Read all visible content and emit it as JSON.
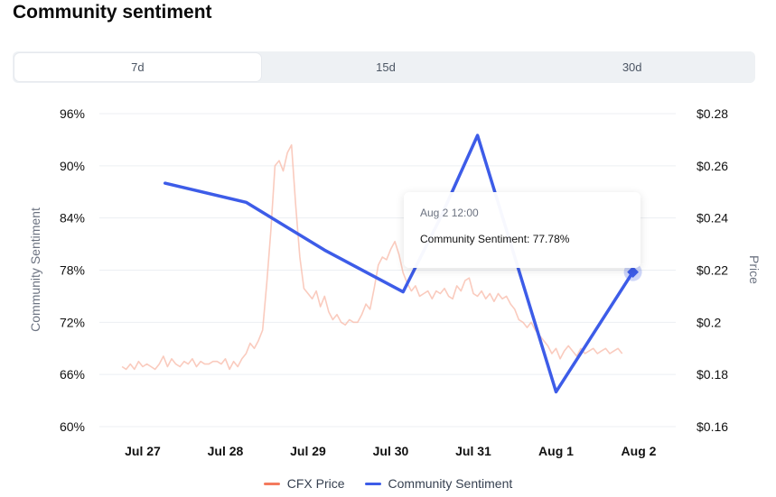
{
  "header": {
    "title": "Community sentiment"
  },
  "tabs": [
    {
      "label": "7d",
      "active": true
    },
    {
      "label": "15d",
      "active": false
    },
    {
      "label": "30d",
      "active": false
    }
  ],
  "tooltip": {
    "date": "Aug 2 12:00",
    "text": "Community Sentiment: 77.78%"
  },
  "legend": {
    "price_label": "CFX Price",
    "sentiment_label": "Community Sentiment"
  },
  "colors": {
    "sentiment": "#3d5ce8",
    "price": "#f8b9a8",
    "price_swatch": "#f47a5e",
    "grid": "#eceff3",
    "active_tick": "#3d5ce8"
  },
  "chart_data": {
    "type": "line",
    "title": "Community sentiment",
    "categories": [
      "Jul 27",
      "Jul 28",
      "Jul 29",
      "Jul 30",
      "Jul 31",
      "Aug 1",
      "Aug 2"
    ],
    "left_axis": {
      "label": "Community Sentiment",
      "range": [
        60,
        96
      ],
      "ticks": [
        "96%",
        "90%",
        "84%",
        "78%",
        "72%",
        "66%",
        "60%"
      ]
    },
    "right_axis": {
      "label": "Price",
      "range": [
        0.16,
        0.28
      ],
      "ticks": [
        "$0.28",
        "$0.26",
        "$0.24",
        "$0.22",
        "$0.2",
        "$0.18",
        "$0.16"
      ]
    },
    "series": [
      {
        "name": "Community Sentiment",
        "axis": "left",
        "x": [
          0.27,
          1.25,
          2.2,
          3.15,
          3.6,
          4.05,
          5.0,
          5.93
        ],
        "values": [
          88.0,
          85.8,
          80.3,
          75.5,
          84.0,
          93.5,
          64.0,
          77.78
        ]
      },
      {
        "name": "CFX Price",
        "axis": "right",
        "x": [
          -0.25,
          -0.2,
          -0.15,
          -0.1,
          -0.05,
          0.0,
          0.05,
          0.1,
          0.15,
          0.2,
          0.25,
          0.3,
          0.35,
          0.4,
          0.45,
          0.5,
          0.55,
          0.6,
          0.65,
          0.7,
          0.75,
          0.8,
          0.85,
          0.9,
          0.95,
          1.0,
          1.05,
          1.1,
          1.15,
          1.2,
          1.25,
          1.3,
          1.35,
          1.4,
          1.45,
          1.5,
          1.55,
          1.6,
          1.65,
          1.7,
          1.75,
          1.8,
          1.85,
          1.9,
          1.95,
          2.0,
          2.05,
          2.1,
          2.15,
          2.2,
          2.25,
          2.3,
          2.35,
          2.4,
          2.45,
          2.5,
          2.55,
          2.6,
          2.65,
          2.7,
          2.75,
          2.8,
          2.85,
          2.9,
          2.95,
          3.0,
          3.05,
          3.1,
          3.15,
          3.2,
          3.25,
          3.3,
          3.35,
          3.4,
          3.45,
          3.5,
          3.55,
          3.6,
          3.65,
          3.7,
          3.75,
          3.8,
          3.85,
          3.9,
          3.95,
          4.0,
          4.05,
          4.1,
          4.15,
          4.2,
          4.25,
          4.3,
          4.35,
          4.4,
          4.45,
          4.5,
          4.55,
          4.6,
          4.65,
          4.7,
          4.75,
          4.8,
          4.85,
          4.9,
          4.95,
          5.0,
          5.05,
          5.1,
          5.15,
          5.2,
          5.25,
          5.3,
          5.35,
          5.4,
          5.45,
          5.5,
          5.55,
          5.6,
          5.65,
          5.7,
          5.75,
          5.8
        ],
        "values": [
          0.183,
          0.182,
          0.184,
          0.182,
          0.185,
          0.183,
          0.184,
          0.183,
          0.182,
          0.184,
          0.187,
          0.183,
          0.186,
          0.184,
          0.183,
          0.185,
          0.184,
          0.186,
          0.183,
          0.185,
          0.184,
          0.184,
          0.185,
          0.185,
          0.184,
          0.186,
          0.182,
          0.185,
          0.183,
          0.186,
          0.188,
          0.192,
          0.19,
          0.193,
          0.197,
          0.215,
          0.235,
          0.26,
          0.262,
          0.258,
          0.265,
          0.268,
          0.245,
          0.225,
          0.213,
          0.211,
          0.209,
          0.212,
          0.206,
          0.21,
          0.204,
          0.201,
          0.203,
          0.2,
          0.199,
          0.201,
          0.2,
          0.2,
          0.203,
          0.207,
          0.205,
          0.213,
          0.222,
          0.225,
          0.224,
          0.228,
          0.231,
          0.226,
          0.219,
          0.215,
          0.212,
          0.214,
          0.21,
          0.211,
          0.212,
          0.209,
          0.212,
          0.211,
          0.213,
          0.21,
          0.209,
          0.214,
          0.212,
          0.216,
          0.217,
          0.211,
          0.21,
          0.212,
          0.209,
          0.211,
          0.208,
          0.211,
          0.209,
          0.21,
          0.207,
          0.205,
          0.201,
          0.2,
          0.198,
          0.2,
          0.197,
          0.195,
          0.193,
          0.191,
          0.188,
          0.19,
          0.186,
          0.189,
          0.191,
          0.189,
          0.187,
          0.19,
          0.188,
          0.189,
          0.19,
          0.188,
          0.189,
          0.19,
          0.188,
          0.189,
          0.19,
          0.188
        ]
      }
    ],
    "highlight": {
      "category": "Aug 2",
      "value": 77.78
    }
  }
}
